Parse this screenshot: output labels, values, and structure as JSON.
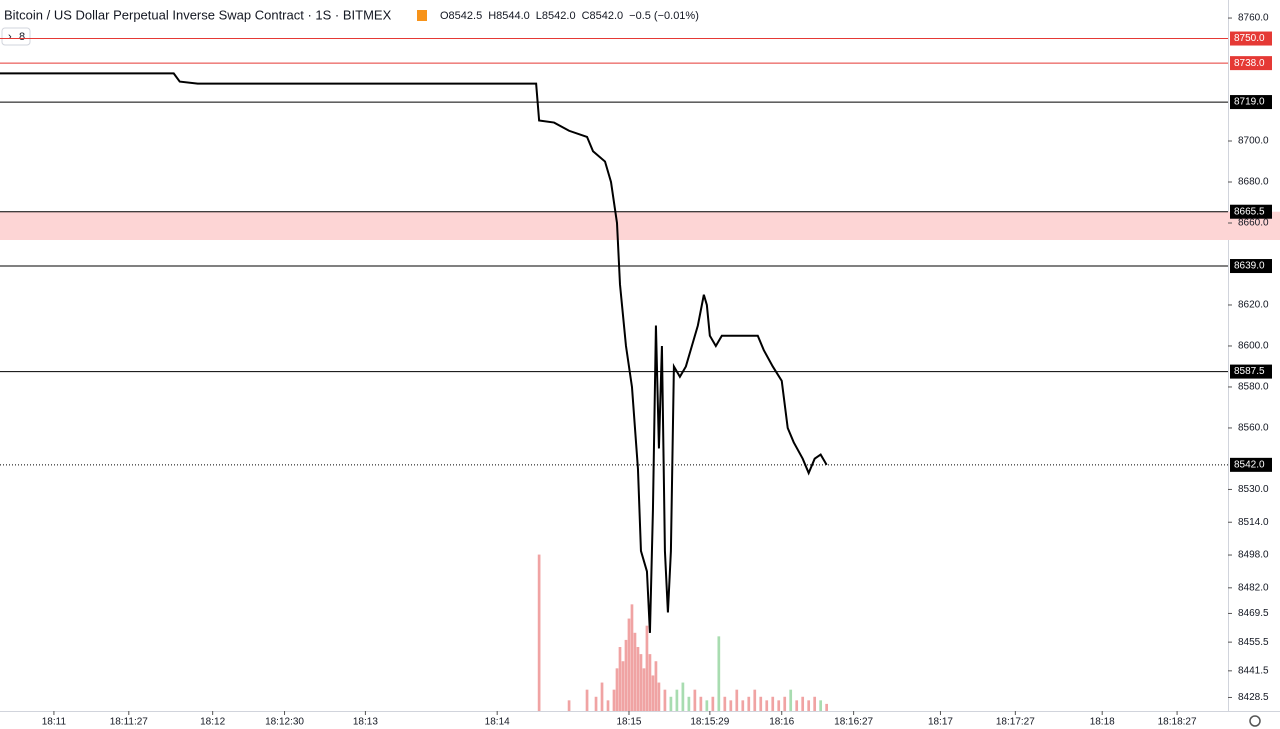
{
  "chart_data": {
    "type": "line",
    "title": "Bitcoin / US Dollar Perpetual Inverse Swap Contract · 1S · BITMEX",
    "legend_values": [
      "O8542.5",
      "H8544.0",
      "L8542.0",
      "C8542.0",
      "−0.5 (−0.01%)"
    ],
    "indicator_count": "8",
    "xlim": [
      0,
      410
    ],
    "xticks": [
      {
        "value": 18,
        "label": "18:11"
      },
      {
        "value": 43,
        "label": "18:11:27"
      },
      {
        "value": 71,
        "label": "18:12"
      },
      {
        "value": 95,
        "label": "18:12:30"
      },
      {
        "value": 122,
        "label": "18:13"
      },
      {
        "value": 166,
        "label": "18:14"
      },
      {
        "value": 210,
        "label": "18:15"
      },
      {
        "value": 237,
        "label": "18:15:29"
      },
      {
        "value": 261,
        "label": "18:16"
      },
      {
        "value": 285,
        "label": "18:16:27"
      },
      {
        "value": 314,
        "label": "18:17"
      },
      {
        "value": 339,
        "label": "18:17:27"
      },
      {
        "value": 368,
        "label": "18:18"
      },
      {
        "value": 393,
        "label": "18:18:27"
      }
    ],
    "ylim": [
      8421.9,
      8768.8
    ],
    "yticks": [
      {
        "value": 8760,
        "label": "8760.0"
      },
      {
        "value": 8700,
        "label": "8700.0"
      },
      {
        "value": 8680,
        "label": "8680.0"
      },
      {
        "value": 8660,
        "label": "8660.0"
      },
      {
        "value": 8620,
        "label": "8620.0"
      },
      {
        "value": 8600,
        "label": "8600.0"
      },
      {
        "value": 8580,
        "label": "8580.0"
      },
      {
        "value": 8560,
        "label": "8560.0"
      },
      {
        "value": 8530,
        "label": "8530.0"
      },
      {
        "value": 8514,
        "label": "8514.0"
      },
      {
        "value": 8498,
        "label": "8498.0"
      },
      {
        "value": 8482,
        "label": "8482.0"
      },
      {
        "value": 8469.5,
        "label": "8469.5"
      },
      {
        "value": 8455.5,
        "label": "8455.5"
      },
      {
        "value": 8441.5,
        "label": "8441.5"
      },
      {
        "value": 8428.5,
        "label": "8428.5"
      }
    ],
    "y2lim": [
      0,
      100
    ],
    "levels": [
      {
        "value": 8750,
        "label": "8750.0",
        "color": "#e53935"
      },
      {
        "value": 8738,
        "label": "8738.0",
        "color": "#e53935"
      },
      {
        "value": 8719,
        "label": "8719.0",
        "color": "#000000"
      },
      {
        "value": 8665.5,
        "label": "8665.5",
        "color": "#000000"
      },
      {
        "value": 8639,
        "label": "8639.0",
        "color": "#000000"
      },
      {
        "value": 8587.5,
        "label": "8587.5",
        "color": "#000000"
      },
      {
        "value": 8542,
        "label": "8542.0",
        "color": "#000000"
      }
    ],
    "zone": {
      "from": 8651.7,
      "to": 8665.5,
      "color": "#fdd5d5"
    },
    "series": [
      {
        "color": "#000000",
        "x": [
          0,
          58,
          60,
          66,
          179,
          180,
          185,
          190,
          196,
          198,
          202,
          204,
          206,
          207,
          209,
          211,
          213,
          214,
          216,
          217,
          218,
          219,
          220,
          221,
          222,
          223,
          224,
          225,
          227,
          229,
          231,
          233,
          235,
          236,
          237,
          239,
          241,
          253,
          255,
          258,
          261,
          263,
          265,
          268,
          270,
          272,
          274,
          276
        ],
        "values": [
          8733,
          8733,
          8729,
          8728,
          8728,
          8710,
          8709,
          8705,
          8702,
          8695,
          8690,
          8680,
          8660,
          8630,
          8600,
          8580,
          8540,
          8500,
          8490,
          8460,
          8520,
          8610,
          8550,
          8600,
          8500,
          8470,
          8500,
          8590,
          8585,
          8590,
          8600,
          8610,
          8625,
          8620,
          8605,
          8600,
          8605,
          8605,
          8598,
          8590,
          8583,
          8560,
          8553,
          8545,
          8538,
          8545,
          8547,
          8542
        ]
      },
      {
        "type": "bar",
        "axis": "y2",
        "x": [
          180,
          190,
          196,
          199,
          201,
          203,
          205,
          206,
          207,
          208,
          209,
          210,
          211,
          212,
          213,
          214,
          215,
          216,
          217,
          218,
          219,
          220,
          222,
          224,
          226,
          228,
          230,
          232,
          234,
          236,
          238,
          240,
          242,
          244,
          246,
          248,
          250,
          252,
          254,
          256,
          258,
          260,
          262,
          264,
          266,
          268,
          270,
          272,
          274,
          276
        ],
        "values": [
          22,
          1.5,
          3,
          2,
          4,
          1.5,
          3,
          6,
          9,
          7,
          10,
          13,
          15,
          11,
          9,
          8,
          6,
          12,
          8,
          5,
          7,
          4,
          3,
          2,
          3,
          4,
          2,
          3,
          2,
          1.5,
          2,
          10.5,
          2,
          1.5,
          3,
          1.5,
          2,
          3,
          2,
          1.5,
          2,
          1.5,
          2,
          3,
          1.5,
          2,
          1.5,
          2,
          1.5,
          1
        ],
        "colors": [
          "#f0a3a3",
          "#f0a3a3",
          "#f0a3a3",
          "#f0a3a3",
          "#f0a3a3",
          "#f0a3a3",
          "#f0a3a3",
          "#f0a3a3",
          "#f0a3a3",
          "#f0a3a3",
          "#f0a3a3",
          "#f0a3a3",
          "#f0a3a3",
          "#f0a3a3",
          "#f0a3a3",
          "#f0a3a3",
          "#f0a3a3",
          "#f0a3a3",
          "#f0a3a3",
          "#f0a3a3",
          "#f0a3a3",
          "#f0a3a3",
          "#f0a3a3",
          "#a8dcb0",
          "#a8dcb0",
          "#a8dcb0",
          "#a8dcb0",
          "#f0a3a3",
          "#f0a3a3",
          "#a8dcb0",
          "#f0a3a3",
          "#a8dcb0",
          "#f0a3a3",
          "#f0a3a3",
          "#f0a3a3",
          "#f0a3a3",
          "#f0a3a3",
          "#f0a3a3",
          "#f0a3a3",
          "#f0a3a3",
          "#f0a3a3",
          "#f0a3a3",
          "#f0a3a3",
          "#a8dcb0",
          "#f0a3a3",
          "#f0a3a3",
          "#f0a3a3",
          "#f0a3a3",
          "#a8dcb0",
          "#f0a3a3"
        ]
      }
    ]
  }
}
